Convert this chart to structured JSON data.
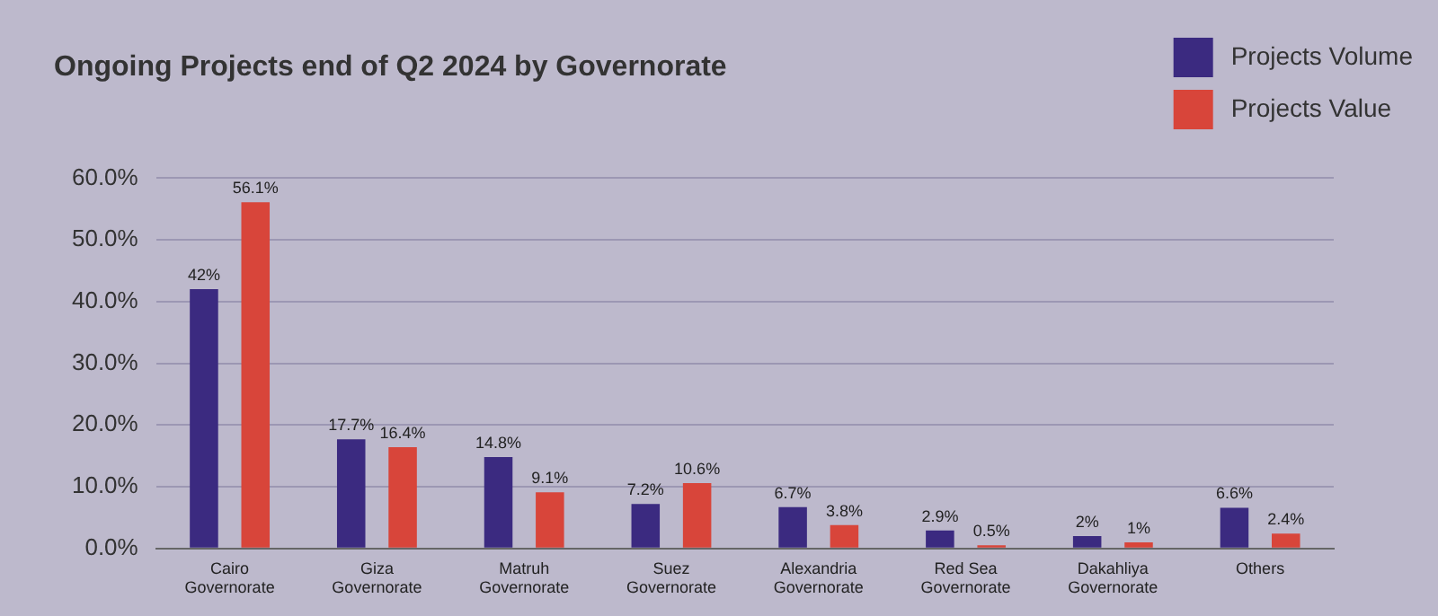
{
  "chart_data": {
    "type": "bar",
    "title": "Ongoing Projects end of Q2 2024 by Governorate",
    "categories": [
      "Cairo Governorate",
      "Giza Governorate",
      "Matruh Governorate",
      "Suez Governorate",
      "Alexandria Governorate",
      "Red Sea Governorate",
      "Dakahliya Governorate",
      "Others"
    ],
    "series": [
      {
        "name": "Projects Volume",
        "color": "#3b2a80",
        "values": [
          42,
          17.7,
          14.8,
          7.2,
          6.7,
          2.9,
          2,
          6.6
        ],
        "value_labels": [
          "42%",
          "17.7%",
          "14.8%",
          "7.2%",
          "6.7%",
          "2.9%",
          "2%",
          "6.6%"
        ]
      },
      {
        "name": "Projects Value",
        "color": "#d8453a",
        "values": [
          56.1,
          16.4,
          9.1,
          10.6,
          3.8,
          0.5,
          1,
          2.4
        ],
        "value_labels": [
          "56.1%",
          "16.4%",
          "9.1%",
          "10.6%",
          "3.8%",
          "0.5%",
          "1%",
          "2.4%"
        ]
      }
    ],
    "ylim": [
      0,
      60
    ],
    "yticks": [
      {
        "value": 0,
        "label": "0.0%"
      },
      {
        "value": 10,
        "label": "10.0%"
      },
      {
        "value": 20,
        "label": "20.0%"
      },
      {
        "value": 30,
        "label": "30.0%"
      },
      {
        "value": 40,
        "label": "40.0%"
      },
      {
        "value": 50,
        "label": "50.0%"
      },
      {
        "value": 60,
        "label": "60.0%"
      }
    ],
    "grid": "y",
    "legend": "top right"
  }
}
